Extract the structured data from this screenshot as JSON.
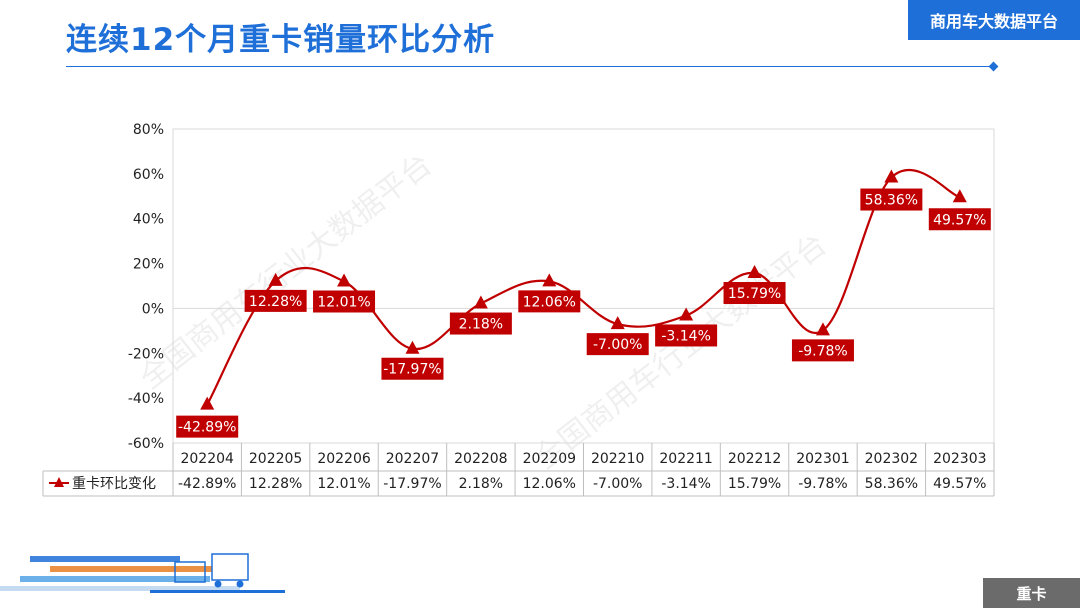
{
  "page": {
    "title": "连续12个月重卡销量环比分析",
    "brand": "商用车大数据平台",
    "footer_tag": "重卡",
    "watermark": "全国商用车行业大数据平台"
  },
  "colors": {
    "accent": "#1f6fd8",
    "series": "#c00000",
    "grid": "#d9d9d9",
    "footer_tag": "#6b6b6b"
  },
  "chart_data": {
    "type": "line",
    "title": "",
    "smooth": true,
    "marker": "triangle",
    "categories": [
      "202204",
      "202205",
      "202206",
      "202207",
      "202208",
      "202209",
      "202210",
      "202211",
      "202212",
      "202301",
      "202302",
      "202303"
    ],
    "series": [
      {
        "name": "重卡环比变化",
        "values": [
          -42.89,
          12.28,
          12.01,
          -17.97,
          2.18,
          12.06,
          -7.0,
          -3.14,
          15.79,
          -9.78,
          58.36,
          49.57
        ],
        "labels": [
          "-42.89%",
          "12.28%",
          "12.01%",
          "-17.97%",
          "2.18%",
          "12.06%",
          "-7.00%",
          "-3.14%",
          "15.79%",
          "-9.78%",
          "58.36%",
          "49.57%"
        ]
      }
    ],
    "ylim": [
      -60,
      80
    ],
    "yticks": [
      "80%",
      "60%",
      "40%",
      "20%",
      "0%",
      "-20%",
      "-40%",
      "-60%"
    ],
    "grid": "horizontal at 0%",
    "data_table": true,
    "legend": "data table row key"
  }
}
